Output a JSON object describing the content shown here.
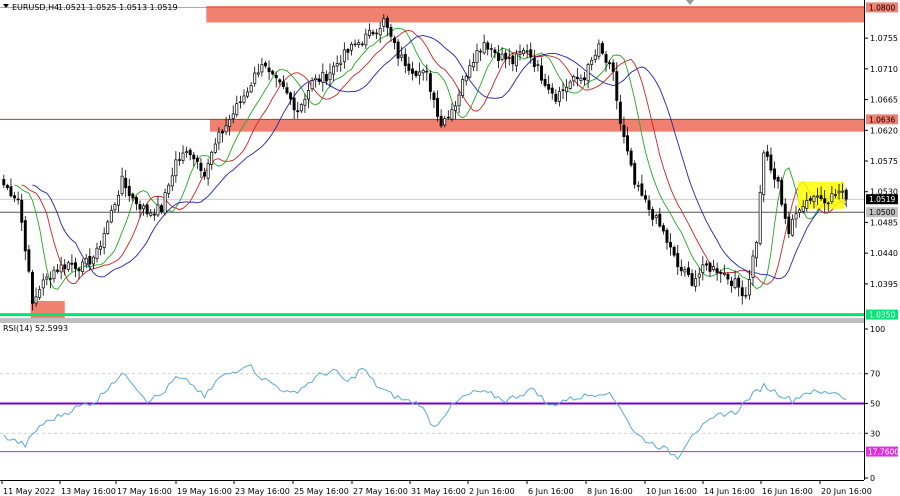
{
  "header": {
    "symbol_label": "EURUSD,H4",
    "ohlc": "1.0521 1.0525 1.0513 1.0519"
  },
  "rsi_header": {
    "label": "RSI(14) 52.5993"
  },
  "colors": {
    "bull": "#000000",
    "bear": "#000000",
    "zone": "#f08070",
    "highlight": "#ffff00",
    "support": "#00e676",
    "ma_fast": "#22aa22",
    "ma_mid": "#cc2222",
    "ma_slow": "#2222aa",
    "rsi_line": "#5ba8d8",
    "rsi_mid": "#7700cc",
    "rsi_low": "#dd33dd"
  },
  "chart_data": [
    {
      "type": "candlestick",
      "title": "",
      "symbol": "EURUSD",
      "timeframe": "H4",
      "price_ticks": [
        1.08,
        1.0755,
        1.071,
        1.0665,
        1.062,
        1.0575,
        1.053,
        1.0485,
        1.044,
        1.0395
      ],
      "price_tick_labels": [
        "1.0755",
        "1.0710",
        "1.0665",
        "1.0620",
        "1.0575",
        "1.0530",
        "1.0485",
        "1.0440",
        "1.0395"
      ],
      "ylim": [
        1.0345,
        1.0805
      ],
      "x_labels": [
        "11 May 2022",
        "13 May 16:00",
        "17 May 16:00",
        "19 May 16:00",
        "23 May 16:00",
        "25 May 16:00",
        "27 May 16:00",
        "31 May 16:00",
        "2 Jun 16:00",
        "6 Jun 16:00",
        "8 Jun 16:00",
        "10 Jun 16:00",
        "14 Jun 16:00",
        "16 Jun 16:00",
        "20 Jun 16:00"
      ],
      "price_tags": [
        {
          "label": "1.0800",
          "value": 1.08
        },
        {
          "label": "1.0636",
          "value": 1.0636
        },
        {
          "label": "1.0519",
          "value": 1.0519
        },
        {
          "label": "1.0500",
          "value": 1.05
        },
        {
          "label": "1.0350",
          "value": 1.035
        }
      ],
      "zones": [
        {
          "from_bar": 57,
          "to_bar": 240,
          "low": 1.0778,
          "high": 1.0802
        },
        {
          "from_bar": 58,
          "to_bar": 240,
          "low": 1.0618,
          "high": 1.0636
        },
        {
          "from_bar": 8,
          "to_bar": 17,
          "low": 1.0338,
          "high": 1.037
        }
      ],
      "highlight_box": {
        "from_bar": 222,
        "to_bar": 234,
        "low": 1.0505,
        "high": 1.0545
      },
      "support_line": 1.035,
      "horizontal_lines": [
        1.05,
        1.0519
      ],
      "anchors": [
        [
          0,
          1.054
        ],
        [
          4,
          1.052
        ],
        [
          6,
          1.045
        ],
        [
          8,
          1.0365
        ],
        [
          10,
          1.039
        ],
        [
          14,
          1.0415
        ],
        [
          18,
          1.0425
        ],
        [
          22,
          1.042
        ],
        [
          26,
          1.044
        ],
        [
          30,
          1.05
        ],
        [
          33,
          1.0545
        ],
        [
          36,
          1.052
        ],
        [
          40,
          1.05
        ],
        [
          44,
          1.0505
        ],
        [
          48,
          1.0575
        ],
        [
          52,
          1.059
        ],
        [
          56,
          1.056
        ],
        [
          60,
          1.061
        ],
        [
          64,
          1.0645
        ],
        [
          68,
          1.068
        ],
        [
          72,
          1.072
        ],
        [
          74,
          1.07
        ],
        [
          78,
          1.068
        ],
        [
          82,
          1.065
        ],
        [
          86,
          1.069
        ],
        [
          90,
          1.07
        ],
        [
          94,
          1.0725
        ],
        [
          98,
          1.0745
        ],
        [
          102,
          1.076
        ],
        [
          106,
          1.078
        ],
        [
          110,
          1.073
        ],
        [
          114,
          1.071
        ],
        [
          118,
          1.07
        ],
        [
          122,
          1.063
        ],
        [
          126,
          1.066
        ],
        [
          130,
          1.072
        ],
        [
          134,
          1.075
        ],
        [
          138,
          1.073
        ],
        [
          142,
          1.072
        ],
        [
          146,
          1.074
        ],
        [
          150,
          1.07
        ],
        [
          154,
          1.067
        ],
        [
          158,
          1.069
        ],
        [
          162,
          1.07
        ],
        [
          166,
          1.074
        ],
        [
          170,
          1.07
        ],
        [
          172,
          1.063
        ],
        [
          176,
          1.054
        ],
        [
          180,
          1.0505
        ],
        [
          184,
          1.047
        ],
        [
          188,
          1.042
        ],
        [
          192,
          1.04
        ],
        [
          196,
          1.042
        ],
        [
          200,
          1.0415
        ],
        [
          204,
          1.0395
        ],
        [
          207,
          1.038
        ],
        [
          210,
          1.046
        ],
        [
          212,
          1.059
        ],
        [
          214,
          1.056
        ],
        [
          216,
          1.054
        ],
        [
          219,
          1.047
        ],
        [
          222,
          1.051
        ],
        [
          226,
          1.0525
        ],
        [
          230,
          1.052
        ],
        [
          233,
          1.053
        ],
        [
          235,
          1.0519
        ]
      ],
      "bar_count": 236
    },
    {
      "type": "line",
      "title": "",
      "indicator": "RSI(14)",
      "value_ticks": [
        100,
        70,
        50,
        30,
        0
      ],
      "ylim": [
        0,
        100
      ],
      "levels": [
        {
          "label": "",
          "value": 50
        },
        {
          "label": "17.7600",
          "value": 17.76
        }
      ],
      "anchors": [
        [
          0,
          28
        ],
        [
          6,
          22
        ],
        [
          10,
          35
        ],
        [
          14,
          40
        ],
        [
          20,
          47
        ],
        [
          26,
          52
        ],
        [
          30,
          64
        ],
        [
          34,
          70
        ],
        [
          38,
          58
        ],
        [
          40,
          52
        ],
        [
          44,
          56
        ],
        [
          48,
          67
        ],
        [
          52,
          64
        ],
        [
          56,
          54
        ],
        [
          60,
          67
        ],
        [
          64,
          71
        ],
        [
          68,
          77
        ],
        [
          72,
          67
        ],
        [
          76,
          62
        ],
        [
          80,
          56
        ],
        [
          84,
          62
        ],
        [
          88,
          69
        ],
        [
          92,
          72
        ],
        [
          96,
          64
        ],
        [
          100,
          74
        ],
        [
          104,
          62
        ],
        [
          108,
          56
        ],
        [
          112,
          52
        ],
        [
          116,
          50
        ],
        [
          120,
          34
        ],
        [
          124,
          46
        ],
        [
          128,
          54
        ],
        [
          132,
          58
        ],
        [
          136,
          56
        ],
        [
          140,
          52
        ],
        [
          144,
          56
        ],
        [
          148,
          60
        ],
        [
          152,
          48
        ],
        [
          156,
          52
        ],
        [
          160,
          54
        ],
        [
          164,
          56
        ],
        [
          168,
          58
        ],
        [
          172,
          48
        ],
        [
          176,
          30
        ],
        [
          180,
          24
        ],
        [
          184,
          20
        ],
        [
          188,
          14
        ],
        [
          192,
          30
        ],
        [
          196,
          36
        ],
        [
          200,
          43
        ],
        [
          204,
          44
        ],
        [
          208,
          54
        ],
        [
          212,
          62
        ],
        [
          216,
          57
        ],
        [
          220,
          52
        ],
        [
          224,
          58
        ],
        [
          228,
          57
        ],
        [
          232,
          58
        ],
        [
          235,
          52.6
        ]
      ]
    }
  ]
}
